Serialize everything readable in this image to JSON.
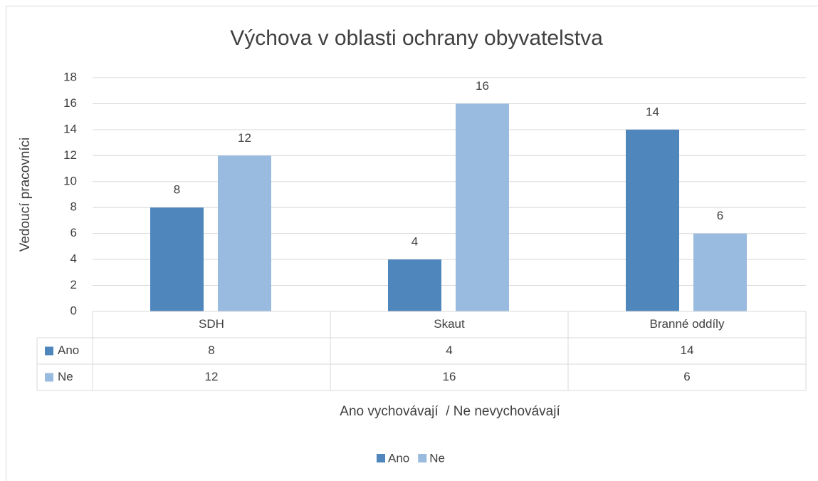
{
  "chart_data": {
    "type": "bar",
    "title": "Výchova v oblasti ochrany obyvatelstva",
    "y_label": "Vedoucí pracovníci",
    "x_label": "Ano vychovávají  / Ne nevychovávají",
    "categories": [
      "SDH",
      "Skaut",
      "Branné oddíly"
    ],
    "series": [
      {
        "name": "Ano",
        "color": "#4f87bd",
        "values": [
          8,
          4,
          14
        ]
      },
      {
        "name": "Ne",
        "color": "#9abbe0",
        "values": [
          12,
          16,
          6
        ]
      }
    ],
    "ylim": [
      0,
      18
    ],
    "yticks": [
      0,
      2,
      4,
      6,
      8,
      10,
      12,
      14,
      16,
      18
    ],
    "grid": true,
    "data_table": true,
    "data_labels": true,
    "legend": "bottom"
  }
}
